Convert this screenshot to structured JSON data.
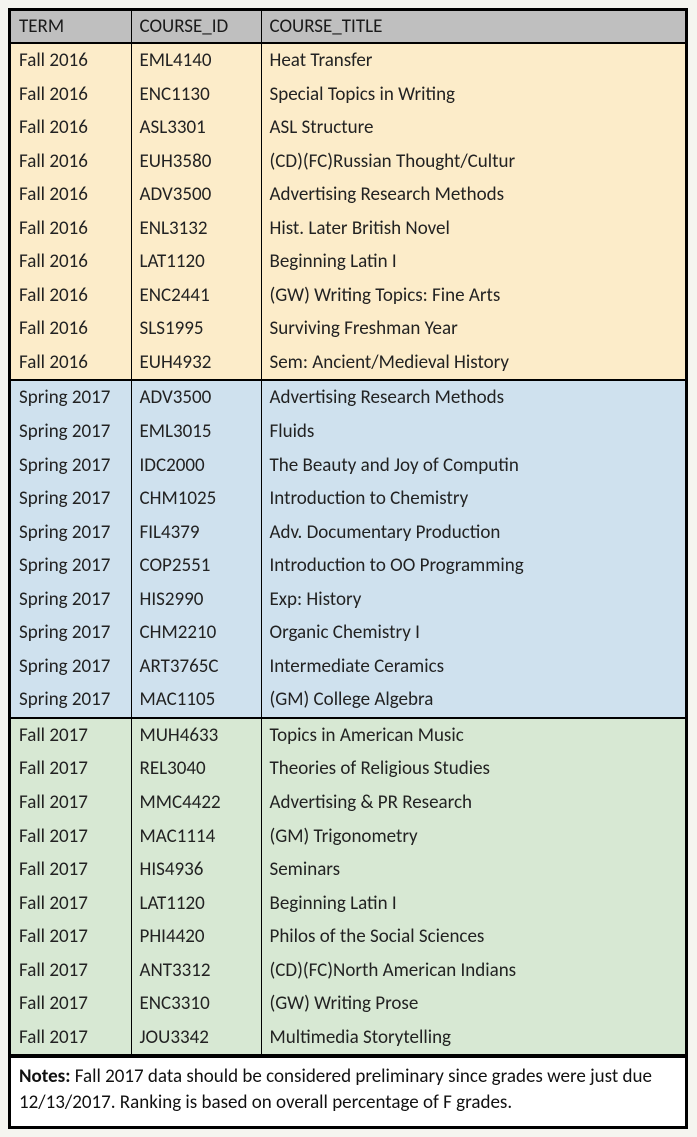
{
  "columns": [
    "TERM",
    "COURSE_ID",
    "COURSE_TITLE"
  ],
  "group_colors": [
    "#fcecc9",
    "#cfe1ee",
    "#d7e8d3"
  ],
  "header_bg": "#bfbfbf",
  "border_color": "#000000",
  "font_family": "Calibri",
  "base_fontsize_pt": 14,
  "groups": [
    {
      "term": "Fall 2016",
      "rows": [
        [
          "Fall 2016",
          "EML4140",
          "Heat Transfer"
        ],
        [
          "Fall 2016",
          "ENC1130",
          "Special Topics in Writing"
        ],
        [
          "Fall 2016",
          "ASL3301",
          "ASL Structure"
        ],
        [
          "Fall 2016",
          "EUH3580",
          "(CD)(FC)Russian Thought/Cultur"
        ],
        [
          "Fall 2016",
          "ADV3500",
          "Advertising Research Methods"
        ],
        [
          "Fall 2016",
          "ENL3132",
          "Hist. Later British Novel"
        ],
        [
          "Fall 2016",
          "LAT1120",
          "Beginning Latin I"
        ],
        [
          "Fall 2016",
          "ENC2441",
          "(GW) Writing Topics: Fine Arts"
        ],
        [
          "Fall 2016",
          "SLS1995",
          "Surviving Freshman Year"
        ],
        [
          "Fall 2016",
          "EUH4932",
          "Sem: Ancient/Medieval History"
        ]
      ]
    },
    {
      "term": "Spring 2017",
      "rows": [
        [
          "Spring 2017",
          "ADV3500",
          "Advertising Research Methods"
        ],
        [
          "Spring 2017",
          "EML3015",
          "Fluids"
        ],
        [
          "Spring 2017",
          "IDC2000",
          "The Beauty and Joy of Computin"
        ],
        [
          "Spring 2017",
          "CHM1025",
          "Introduction to Chemistry"
        ],
        [
          "Spring 2017",
          "FIL4379",
          "Adv. Documentary Production"
        ],
        [
          "Spring 2017",
          "COP2551",
          "Introduction to OO Programming"
        ],
        [
          "Spring 2017",
          "HIS2990",
          "Exp: History"
        ],
        [
          "Spring 2017",
          "CHM2210",
          "Organic Chemistry I"
        ],
        [
          "Spring 2017",
          "ART3765C",
          "Intermediate Ceramics"
        ],
        [
          "Spring 2017",
          "MAC1105",
          "(GM) College Algebra"
        ]
      ]
    },
    {
      "term": "Fall 2017",
      "rows": [
        [
          "Fall 2017",
          "MUH4633",
          "Topics in American Music"
        ],
        [
          "Fall 2017",
          "REL3040",
          "Theories of Religious Studies"
        ],
        [
          "Fall 2017",
          "MMC4422",
          "Advertising & PR Research"
        ],
        [
          "Fall 2017",
          "MAC1114",
          "(GM) Trigonometry"
        ],
        [
          "Fall 2017",
          "HIS4936",
          "Seminars"
        ],
        [
          "Fall 2017",
          "LAT1120",
          "Beginning Latin I"
        ],
        [
          "Fall 2017",
          "PHI4420",
          "Philos of the Social Sciences"
        ],
        [
          "Fall 2017",
          "ANT3312",
          "(CD)(FC)North American Indians"
        ],
        [
          "Fall 2017",
          "ENC3310",
          "(GW) Writing Prose"
        ],
        [
          "Fall 2017",
          "JOU3342",
          "Multimedia Storytelling"
        ]
      ]
    }
  ],
  "notes_label": "Notes:",
  "notes_text": "Fall 2017 data should be considered preliminary since grades were just due 12/13/2017.  Ranking is based on overall percentage of F grades."
}
